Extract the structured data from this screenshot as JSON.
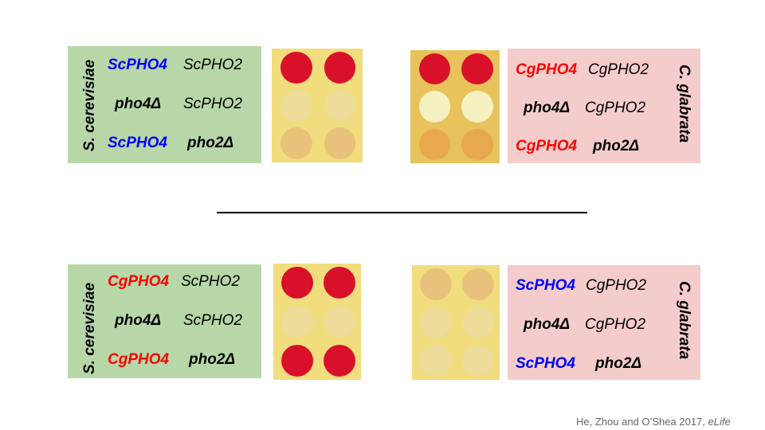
{
  "panels": {
    "top_left": {
      "species": "S. cerevisiae",
      "rows": [
        [
          {
            "text": "ScPHO4",
            "color": "#0000ff",
            "bold": true
          },
          {
            "text": "ScPHO2",
            "color": "#000000",
            "bold": false
          }
        ],
        [
          {
            "text": "pho4Δ",
            "color": "#000000",
            "bold": true
          },
          {
            "text": "ScPHO2",
            "color": "#000000",
            "bold": false
          }
        ],
        [
          {
            "text": "ScPHO4",
            "color": "#0000ff",
            "bold": true
          },
          {
            "text": "pho2Δ",
            "color": "#000000",
            "bold": true
          }
        ]
      ]
    },
    "top_right": {
      "species": "C. glabrata",
      "rows": [
        [
          {
            "text": "CgPHO4",
            "color": "#ff0000",
            "bold": true
          },
          {
            "text": "CgPHO2",
            "color": "#000000",
            "bold": false
          }
        ],
        [
          {
            "text": "pho4Δ",
            "color": "#000000",
            "bold": true
          },
          {
            "text": "CgPHO2",
            "color": "#000000",
            "bold": false
          }
        ],
        [
          {
            "text": "CgPHO4",
            "color": "#ff0000",
            "bold": true
          },
          {
            "text": "pho2Δ",
            "color": "#000000",
            "bold": true
          }
        ]
      ]
    },
    "bottom_left": {
      "species": "S. cerevisiae",
      "rows": [
        [
          {
            "text": "CgPHO4",
            "color": "#ff0000",
            "bold": true
          },
          {
            "text": "ScPHO2",
            "color": "#000000",
            "bold": false
          }
        ],
        [
          {
            "text": "pho4Δ",
            "color": "#000000",
            "bold": true
          },
          {
            "text": "ScPHO2",
            "color": "#000000",
            "bold": false
          }
        ],
        [
          {
            "text": "CgPHO4",
            "color": "#ff0000",
            "bold": true
          },
          {
            "text": "pho2Δ",
            "color": "#000000",
            "bold": true
          }
        ]
      ]
    },
    "bottom_right": {
      "species": "C. glabrata",
      "rows": [
        [
          {
            "text": "ScPHO4",
            "color": "#0000ff",
            "bold": true
          },
          {
            "text": "CgPHO2",
            "color": "#000000",
            "bold": false
          }
        ],
        [
          {
            "text": "pho4Δ",
            "color": "#000000",
            "bold": true
          },
          {
            "text": "CgPHO2",
            "color": "#000000",
            "bold": false
          }
        ],
        [
          {
            "text": "ScPHO4",
            "color": "#0000ff",
            "bold": true
          },
          {
            "text": "pho2Δ",
            "color": "#000000",
            "bold": true
          }
        ]
      ]
    }
  },
  "plates": {
    "top_left": {
      "background": "#f2dd7e",
      "rows": [
        [
          "red",
          "red"
        ],
        [
          "pale",
          "pale"
        ],
        [
          "tan",
          "tan"
        ]
      ]
    },
    "top_right": {
      "background": "#e8c25a",
      "rows": [
        [
          "red",
          "red"
        ],
        [
          "white",
          "white"
        ],
        [
          "orange",
          "orange"
        ]
      ]
    },
    "bottom_left": {
      "background": "#f2dd7e",
      "rows": [
        [
          "red",
          "red"
        ],
        [
          "pale",
          "pale"
        ],
        [
          "red",
          "red"
        ]
      ]
    },
    "bottom_right": {
      "background": "#f2dd7e",
      "rows": [
        [
          "tan",
          "tan"
        ],
        [
          "pale",
          "pale"
        ],
        [
          "pale",
          "pale"
        ]
      ]
    }
  },
  "spot_colors": {
    "red": "#d8102a",
    "pale": "#eedc9a",
    "tan": "#e8c27a",
    "white": "#f5f0c0",
    "orange": "#e8a84e"
  },
  "citation": {
    "authors": "He, Zhou and O’Shea 2017, ",
    "journal": "eLife"
  }
}
